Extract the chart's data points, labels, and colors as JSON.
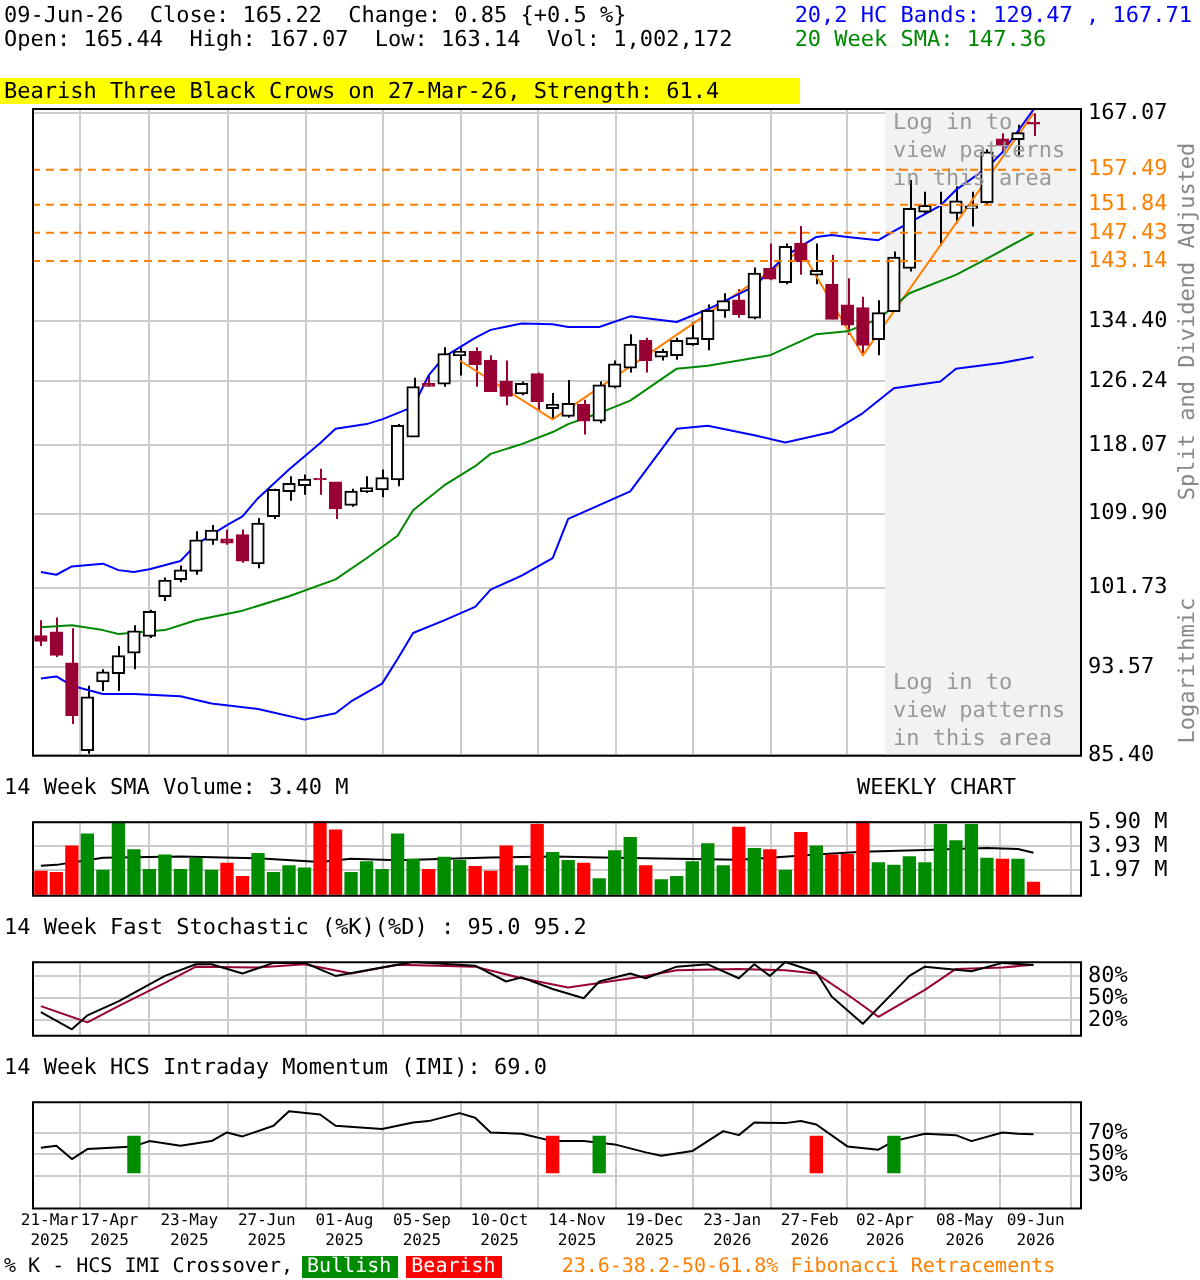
{
  "chart_data": [
    {
      "type": "candlestick",
      "title": "09-Jun-26  Close: 165.22  Change: 0.85 {+0.5 %}",
      "subtitle": "Open: 165.44  High: 167.07  Low: 163.14  Vol: 1,002,172",
      "x": [
        "2025-03-17",
        "2025-03-24",
        "2025-03-31",
        "2025-04-07",
        "2025-04-14",
        "2025-04-21",
        "2025-04-28",
        "2025-05-05",
        "2025-05-12",
        "2025-05-19",
        "2025-05-26",
        "2025-06-02",
        "2025-06-09",
        "2025-06-16",
        "2025-06-23",
        "2025-06-30",
        "2025-07-07",
        "2025-07-14",
        "2025-07-21",
        "2025-07-28",
        "2025-08-04",
        "2025-08-11",
        "2025-08-18",
        "2025-08-25",
        "2025-09-01",
        "2025-09-08",
        "2025-09-15",
        "2025-09-22",
        "2025-09-29",
        "2025-10-06",
        "2025-10-13",
        "2025-10-20",
        "2025-10-27",
        "2025-11-03",
        "2025-11-10",
        "2025-11-17",
        "2025-11-24",
        "2025-12-01",
        "2025-12-08",
        "2025-12-15",
        "2025-12-22",
        "2025-12-29",
        "2026-01-05",
        "2026-01-12",
        "2026-01-19",
        "2026-01-26",
        "2026-02-02",
        "2026-02-09",
        "2026-02-16",
        "2026-02-23",
        "2026-03-02",
        "2026-03-09",
        "2026-03-16",
        "2026-03-23",
        "2026-03-30",
        "2026-04-06",
        "2026-04-13",
        "2026-04-20",
        "2026-04-27",
        "2026-05-04",
        "2026-05-11",
        "2026-05-18",
        "2026-05-25",
        "2026-06-01",
        "2026-06-08"
      ],
      "ohlc": [
        [
          96.7,
          98.3,
          95.7,
          96.2
        ],
        [
          97.1,
          98.6,
          94.6,
          94.8
        ],
        [
          94.0,
          97.5,
          88.2,
          89.0
        ],
        [
          85.8,
          91.8,
          85.5,
          90.7
        ],
        [
          92.2,
          93.4,
          91.3,
          93.1
        ],
        [
          93.0,
          95.7,
          91.3,
          94.7
        ],
        [
          95.0,
          97.8,
          93.4,
          97.2
        ],
        [
          96.7,
          99.4,
          96.5,
          99.2
        ],
        [
          100.8,
          102.8,
          100.3,
          102.5
        ],
        [
          102.6,
          104.1,
          102.3,
          103.6
        ],
        [
          103.5,
          107.9,
          103.1,
          106.9
        ],
        [
          106.9,
          108.6,
          106.4,
          108.0
        ],
        [
          107.0,
          108.1,
          106.4,
          106.6
        ],
        [
          107.5,
          108.1,
          104.4,
          104.6
        ],
        [
          104.3,
          109.4,
          103.8,
          108.8
        ],
        [
          109.6,
          112.8,
          109.3,
          112.7
        ],
        [
          112.5,
          114.3,
          111.4,
          113.4
        ],
        [
          113.2,
          114.5,
          112.1,
          113.9
        ],
        [
          114.0,
          115.2,
          112.1,
          113.9
        ],
        [
          113.6,
          113.6,
          109.3,
          110.5
        ],
        [
          110.9,
          112.8,
          110.7,
          112.5
        ],
        [
          112.5,
          114.3,
          112.3,
          112.9
        ],
        [
          112.7,
          115.1,
          111.8,
          114.1
        ],
        [
          113.9,
          120.7,
          113.1,
          120.5
        ],
        [
          119.1,
          126.7,
          119.1,
          125.5
        ],
        [
          125.9,
          127.0,
          125.5,
          125.6
        ],
        [
          125.9,
          130.8,
          125.5,
          129.9
        ],
        [
          129.7,
          130.8,
          127.0,
          130.2
        ],
        [
          130.2,
          130.8,
          125.5,
          128.5
        ],
        [
          129.0,
          129.7,
          124.9,
          124.9
        ],
        [
          126.2,
          129.0,
          123.1,
          124.3
        ],
        [
          124.6,
          126.2,
          124.4,
          125.9
        ],
        [
          127.2,
          127.4,
          122.4,
          123.6
        ],
        [
          122.7,
          124.7,
          121.3,
          123.2
        ],
        [
          121.7,
          126.4,
          121.5,
          123.3
        ],
        [
          123.2,
          123.8,
          119.4,
          121.1
        ],
        [
          121.1,
          126.2,
          120.8,
          125.7
        ],
        [
          125.5,
          129.0,
          125.3,
          128.5
        ],
        [
          128.0,
          132.6,
          127.4,
          131.2
        ],
        [
          131.7,
          132.1,
          127.4,
          129.0
        ],
        [
          129.5,
          130.6,
          129.0,
          130.2
        ],
        [
          129.7,
          132.1,
          129.1,
          131.7
        ],
        [
          131.2,
          134.3,
          131.0,
          132.1
        ],
        [
          131.9,
          136.8,
          130.4,
          135.9
        ],
        [
          135.9,
          138.4,
          134.9,
          137.3
        ],
        [
          137.4,
          139.0,
          134.9,
          135.4
        ],
        [
          134.9,
          142.2,
          134.7,
          141.3
        ],
        [
          142.0,
          145.8,
          140.3,
          140.5
        ],
        [
          140.0,
          145.8,
          139.7,
          145.3
        ],
        [
          145.8,
          148.5,
          141.1,
          143.1
        ],
        [
          141.1,
          145.8,
          139.7,
          141.7
        ],
        [
          139.7,
          144.1,
          134.7,
          134.7
        ],
        [
          136.7,
          140.6,
          132.5,
          133.9
        ],
        [
          136.3,
          137.9,
          129.7,
          131.1
        ],
        [
          131.9,
          137.4,
          129.7,
          135.6
        ],
        [
          135.8,
          144.6,
          135.8,
          143.7
        ],
        [
          142.1,
          155.8,
          141.6,
          151.2
        ],
        [
          150.7,
          153.9,
          150.4,
          151.7
        ],
        [
          151.7,
          153.9,
          145.5,
          151.8
        ],
        [
          150.5,
          154.8,
          148.9,
          152.4
        ],
        [
          151.3,
          153.9,
          148.4,
          151.6
        ],
        [
          152.2,
          160.9,
          151.9,
          160.4
        ],
        [
          162.6,
          163.6,
          160.4,
          161.6
        ],
        [
          162.6,
          165.1,
          159.9,
          163.7
        ],
        [
          165.44,
          167.07,
          163.14,
          165.22
        ]
      ],
      "colors": [
        "#990033",
        "#990033",
        "#990033",
        "#000000",
        "#000000",
        "#000000",
        "#000000",
        "#000000",
        "#000000",
        "#000000",
        "#000000",
        "#000000",
        "#990033",
        "#990033",
        "#000000",
        "#000000",
        "#000000",
        "#000000",
        "#990033",
        "#990033",
        "#000000",
        "#000000",
        "#000000",
        "#000000",
        "#000000",
        "#990033",
        "#000000",
        "#000000",
        "#990033",
        "#990033",
        "#990033",
        "#000000",
        "#990033",
        "#000000",
        "#000000",
        "#990033",
        "#000000",
        "#000000",
        "#000000",
        "#990033",
        "#000000",
        "#000000",
        "#000000",
        "#000000",
        "#000000",
        "#990033",
        "#000000",
        "#990033",
        "#000000",
        "#990033",
        "#000000",
        "#990033",
        "#990033",
        "#990033",
        "#000000",
        "#000000",
        "#000000",
        "#000000",
        "#000000",
        "#000000",
        "#000000",
        "#000000",
        "#990033",
        "#000000",
        "#990033"
      ],
      "series": [
        {
          "name": "20,2 HC Bands: 129.47 , 167.71",
          "type": "line",
          "color": "#0000ff",
          "x": [
            "2025-03-17",
            "2025-03-24",
            "2025-03-31",
            "2025-04-14",
            "2025-04-21",
            "2025-04-28",
            "2025-05-05",
            "2025-05-19",
            "2025-05-26",
            "2025-06-09",
            "2025-06-16",
            "2025-06-23",
            "2025-07-07",
            "2025-07-21",
            "2025-07-28",
            "2025-08-11",
            "2025-08-18",
            "2025-09-01",
            "2025-09-08",
            "2025-09-15",
            "2025-09-29",
            "2025-10-06",
            "2025-10-20",
            "2025-11-03",
            "2025-11-10",
            "2025-11-24",
            "2025-12-08",
            "2025-12-29",
            "2026-01-12",
            "2026-02-02",
            "2026-02-16",
            "2026-03-02",
            "2026-03-09",
            "2026-03-16",
            "2026-03-30",
            "2026-04-06",
            "2026-04-27",
            "2026-05-04",
            "2026-05-18",
            "2026-05-25",
            "2026-06-08"
          ],
          "values": [
            103.4,
            103.1,
            104.0,
            104.3,
            103.6,
            103.4,
            103.7,
            104.6,
            106.4,
            108.6,
            109.6,
            111.7,
            115.1,
            118.3,
            120.1,
            120.7,
            121.3,
            122.9,
            127.0,
            129.5,
            132.1,
            133.2,
            134.1,
            134.0,
            133.6,
            133.6,
            135.1,
            134.3,
            136.1,
            139.4,
            143.9,
            146.8,
            147.1,
            146.8,
            146.3,
            147.7,
            151.7,
            154.2,
            157.8,
            160.4,
            167.71
          ]
        },
        {
          "type": "line",
          "color": "#0000ff",
          "x": [
            "2025-03-17",
            "2025-03-24",
            "2025-03-31",
            "2025-04-14",
            "2025-04-28",
            "2025-05-19",
            "2025-06-02",
            "2025-06-23",
            "2025-07-14",
            "2025-07-28",
            "2025-08-04",
            "2025-08-18",
            "2025-08-25",
            "2025-09-01",
            "2025-09-15",
            "2025-09-29",
            "2025-10-06",
            "2025-10-20",
            "2025-11-03",
            "2025-11-10",
            "2025-12-08",
            "2025-12-29",
            "2026-01-12",
            "2026-02-02",
            "2026-02-16",
            "2026-03-09",
            "2026-03-23",
            "2026-04-06",
            "2026-04-27",
            "2026-05-04",
            "2026-05-25",
            "2026-06-08"
          ],
          "values": [
            92.5,
            92.7,
            91.8,
            91.0,
            91.0,
            90.8,
            90.1,
            89.6,
            88.6,
            89.2,
            90.3,
            92.0,
            94.4,
            97.0,
            98.3,
            99.7,
            101.5,
            103.0,
            104.9,
            109.3,
            112.5,
            120.1,
            120.5,
            119.3,
            118.4,
            119.7,
            122.1,
            125.3,
            126.2,
            127.9,
            128.7,
            129.47
          ]
        },
        {
          "name": "20 Week SMA: 147.36",
          "type": "line",
          "color": "#008800",
          "x": [
            "2025-03-17",
            "2025-03-31",
            "2025-04-14",
            "2025-04-21",
            "2025-05-12",
            "2025-05-26",
            "2025-06-16",
            "2025-07-07",
            "2025-07-28",
            "2025-08-11",
            "2025-08-25",
            "2025-09-01",
            "2025-09-15",
            "2025-09-29",
            "2025-10-06",
            "2025-10-20",
            "2025-11-03",
            "2025-11-10",
            "2025-11-24",
            "2025-12-08",
            "2025-12-29",
            "2026-01-12",
            "2026-02-09",
            "2026-03-02",
            "2026-03-16",
            "2026-03-30",
            "2026-04-13",
            "2026-05-04",
            "2026-05-18",
            "2026-06-08"
          ],
          "values": [
            97.6,
            97.8,
            97.3,
            96.9,
            97.3,
            98.3,
            99.3,
            100.8,
            102.6,
            104.9,
            107.4,
            110.3,
            113.2,
            115.5,
            117.0,
            118.2,
            119.7,
            120.7,
            122.1,
            123.7,
            127.9,
            128.3,
            129.7,
            132.6,
            133.0,
            134.7,
            138.4,
            141.1,
            143.5,
            147.36
          ]
        },
        {
          "type": "line",
          "color": "#ff8000",
          "x": [
            "2025-09-22",
            "2025-11-03",
            "2026-02-23",
            "2026-03-23",
            "2026-06-08"
          ],
          "values": [
            129.0,
            121.3,
            144.8,
            129.7,
            167.07
          ]
        }
      ],
      "xlim": [
        "2025-03-13",
        "2026-06-29"
      ],
      "xticks": [
        {
          "value": "2025-03-21",
          "label": null
        },
        {
          "value": "2025-04-17",
          "label": null
        },
        {
          "value": "2025-05-23",
          "label": null
        },
        {
          "value": "2025-06-27",
          "label": null
        },
        {
          "value": "2025-08-01",
          "label": null
        },
        {
          "value": "2025-09-05",
          "label": null
        },
        {
          "value": "2025-10-10",
          "label": null
        },
        {
          "value": "2025-11-14",
          "label": null
        },
        {
          "value": "2025-12-19",
          "label": null
        },
        {
          "value": "2026-01-23",
          "label": null
        },
        {
          "value": "2026-02-27",
          "label": null
        },
        {
          "value": "2026-04-02",
          "label": null
        },
        {
          "value": "2026-05-08",
          "label": null
        },
        {
          "value": "2026-06-09",
          "label": null
        }
      ],
      "ylim": [
        85.4,
        168
      ],
      "yticks": [
        {
          "value": 85.4,
          "label": "85.40"
        },
        {
          "value": 93.57,
          "label": "93.57"
        },
        {
          "value": 101.73,
          "label": "101.73"
        },
        {
          "value": 109.9,
          "label": "109.90"
        },
        {
          "value": 118.07,
          "label": "118.07"
        },
        {
          "value": 126.24,
          "label": "126.24"
        },
        {
          "value": 134.4,
          "label": "134.40"
        },
        {
          "value": 167.07,
          "label": "167.07"
        }
      ],
      "log": true,
      "grid": true,
      "tick_labels": "y",
      "legend": "top right",
      "ref_lines": [
        {
          "axis": "y",
          "value": 157.49,
          "label": "157.49",
          "color": "#ff8000",
          "line_style": "dashed"
        },
        {
          "axis": "y",
          "value": 151.84,
          "label": "151.84",
          "color": "#ff8000",
          "line_style": "dashed"
        },
        {
          "axis": "y",
          "value": 147.43,
          "label": "147.43",
          "color": "#ff8000",
          "line_style": "dashed"
        },
        {
          "axis": "y",
          "value": 143.14,
          "label": "143.14",
          "color": "#ff8000",
          "line_style": "dashed"
        }
      ],
      "bands": [
        {
          "axis": "x",
          "from": "2026-04-02",
          "to": "2026-06-29",
          "label": "Log in to view patterns in this area",
          "color": "#f2f2f2"
        }
      ],
      "annotations": [
        "Bearish Three Black Crows on 27-Mar-26, Strength: 61.4",
        "Split and Dividend Adjusted",
        "Logarithmic",
        "Log in to view patterns in this area"
      ]
    },
    {
      "type": "bar",
      "title": "14 Week SMA Volume: 3.40 M",
      "x": [
        "2025-03-17",
        "2025-03-24",
        "2025-03-31",
        "2025-04-07",
        "2025-04-14",
        "2025-04-21",
        "2025-04-28",
        "2025-05-05",
        "2025-05-12",
        "2025-05-19",
        "2025-05-26",
        "2025-06-02",
        "2025-06-09",
        "2025-06-16",
        "2025-06-23",
        "2025-06-30",
        "2025-07-07",
        "2025-07-14",
        "2025-07-21",
        "2025-07-28",
        "2025-08-04",
        "2025-08-11",
        "2025-08-18",
        "2025-08-25",
        "2025-09-01",
        "2025-09-08",
        "2025-09-15",
        "2025-09-22",
        "2025-09-29",
        "2025-10-06",
        "2025-10-13",
        "2025-10-20",
        "2025-10-27",
        "2025-11-03",
        "2025-11-10",
        "2025-11-17",
        "2025-11-24",
        "2025-12-01",
        "2025-12-08",
        "2025-12-15",
        "2025-12-22",
        "2025-12-29",
        "2026-01-05",
        "2026-01-12",
        "2026-01-19",
        "2026-01-26",
        "2026-02-02",
        "2026-02-09",
        "2026-02-16",
        "2026-02-23",
        "2026-03-02",
        "2026-03-09",
        "2026-03-16",
        "2026-03-23",
        "2026-03-30",
        "2026-04-06",
        "2026-04-13",
        "2026-04-20",
        "2026-04-27",
        "2026-05-04",
        "2026-05-11",
        "2026-05-18",
        "2026-05-25",
        "2026-06-01",
        "2026-06-08"
      ],
      "values": [
        1.89,
        1.78,
        3.93,
        4.91,
        1.97,
        5.9,
        3.63,
        2.04,
        3.21,
        2.04,
        2.95,
        1.97,
        2.53,
        1.47,
        3.33,
        1.78,
        2.34,
        2.15,
        5.9,
        5.22,
        1.78,
        2.65,
        2.04,
        4.91,
        2.87,
        2.04,
        3.02,
        2.76,
        2.27,
        1.89,
        3.93,
        2.34,
        5.67,
        3.4,
        2.76,
        2.53,
        1.29,
        3.55,
        4.61,
        2.34,
        1.21,
        1.47,
        2.65,
        4.12,
        2.34,
        5.44,
        3.74,
        3.63,
        1.97,
        5.03,
        3.93,
        3.21,
        3.25,
        5.9,
        2.57,
        2.38,
        3.06,
        2.57,
        5.67,
        4.35,
        5.67,
        2.95,
        2.87,
        2.87,
        1.0
      ],
      "colors": [
        "#ff0000",
        "#ff0000",
        "#ff0000",
        "#008c00",
        "#008c00",
        "#008c00",
        "#008c00",
        "#008c00",
        "#008c00",
        "#008c00",
        "#008c00",
        "#008c00",
        "#ff0000",
        "#ff0000",
        "#008c00",
        "#008c00",
        "#008c00",
        "#008c00",
        "#ff0000",
        "#ff0000",
        "#008c00",
        "#008c00",
        "#008c00",
        "#008c00",
        "#008c00",
        "#ff0000",
        "#008c00",
        "#008c00",
        "#ff0000",
        "#ff0000",
        "#ff0000",
        "#008c00",
        "#ff0000",
        "#008c00",
        "#008c00",
        "#ff0000",
        "#008c00",
        "#008c00",
        "#008c00",
        "#ff0000",
        "#008c00",
        "#008c00",
        "#008c00",
        "#008c00",
        "#008c00",
        "#ff0000",
        "#008c00",
        "#ff0000",
        "#008c00",
        "#ff0000",
        "#008c00",
        "#ff0000",
        "#ff0000",
        "#ff0000",
        "#008c00",
        "#008c00",
        "#008c00",
        "#008c00",
        "#008c00",
        "#008c00",
        "#008c00",
        "#008c00",
        "#ff0000",
        "#008c00",
        "#ff0000"
      ],
      "series": [
        {
          "type": "line",
          "color": "#000000",
          "x": [
            "2025-03-17",
            "2025-03-24",
            "2025-04-14",
            "2025-05-19",
            "2025-06-23",
            "2025-07-21",
            "2025-08-04",
            "2025-08-25",
            "2025-10-06",
            "2025-11-03",
            "2025-12-01",
            "2025-12-29",
            "2026-01-26",
            "2026-02-09",
            "2026-03-02",
            "2026-03-23",
            "2026-04-20",
            "2026-05-18",
            "2026-06-01",
            "2026-06-08"
          ],
          "values": [
            2.34,
            2.42,
            2.99,
            3.1,
            2.95,
            2.65,
            2.91,
            2.8,
            3.02,
            3.1,
            2.99,
            2.91,
            2.84,
            2.99,
            3.25,
            3.48,
            3.63,
            3.78,
            3.7,
            3.4
          ]
        }
      ],
      "xlim": [
        "2025-03-13",
        "2026-06-29"
      ],
      "xticks": [
        {
          "value": "2025-03-21",
          "label": null
        },
        {
          "value": "2025-04-17",
          "label": null
        },
        {
          "value": "2025-05-23",
          "label": null
        },
        {
          "value": "2025-06-27",
          "label": null
        },
        {
          "value": "2025-08-01",
          "label": null
        },
        {
          "value": "2025-09-05",
          "label": null
        },
        {
          "value": "2025-10-10",
          "label": null
        },
        {
          "value": "2025-11-14",
          "label": null
        },
        {
          "value": "2025-12-19",
          "label": null
        },
        {
          "value": "2026-01-23",
          "label": null
        },
        {
          "value": "2026-02-27",
          "label": null
        },
        {
          "value": "2026-04-02",
          "label": null
        },
        {
          "value": "2026-05-08",
          "label": null
        },
        {
          "value": "2026-06-09",
          "label": null
        }
      ],
      "ylim": [
        0,
        5.95
      ],
      "yticks": [
        {
          "value": 1.97,
          "label": "1.97 M"
        },
        {
          "value": 3.93,
          "label": "3.93 M"
        },
        {
          "value": 5.9,
          "label": "5.90 M"
        }
      ],
      "grid": true,
      "tick_labels": "y",
      "annotations": [
        "WEEKLY CHART"
      ]
    },
    {
      "type": "line",
      "title": "14 Week Fast Stochastic (%K)(%D) : 95.0 95.2",
      "series": [
        {
          "color": "#000000",
          "x": [
            "2025-03-17",
            "2025-03-31",
            "2025-04-07",
            "2025-04-21",
            "2025-05-12",
            "2025-05-26",
            "2025-06-02",
            "2025-06-16",
            "2025-06-30",
            "2025-07-14",
            "2025-07-28",
            "2025-08-11",
            "2025-09-01",
            "2025-09-29",
            "2025-10-13",
            "2025-10-20",
            "2025-11-03",
            "2025-11-17",
            "2025-11-24",
            "2025-12-08",
            "2025-12-15",
            "2025-12-29",
            "2026-01-12",
            "2026-01-26",
            "2026-02-02",
            "2026-02-09",
            "2026-02-16",
            "2026-03-02",
            "2026-03-09",
            "2026-03-23",
            "2026-04-13",
            "2026-04-20",
            "2026-05-11",
            "2026-05-25",
            "2026-06-08"
          ],
          "values": [
            30.8,
            7.4,
            26.4,
            45.3,
            80,
            95.8,
            95.8,
            83.2,
            97.7,
            97.7,
            80,
            87.6,
            99,
            93.9,
            72.4,
            78.1,
            62.3,
            49.7,
            72.4,
            83.2,
            76.8,
            92.6,
            95.8,
            76.8,
            95.8,
            80,
            98.9,
            85,
            51.6,
            15,
            80,
            92.6,
            86.3,
            97.7,
            95.0
          ]
        },
        {
          "color": "#990033",
          "x": [
            "2025-03-17",
            "2025-04-07",
            "2025-04-21",
            "2025-05-12",
            "2025-05-26",
            "2025-06-23",
            "2025-07-14",
            "2025-08-04",
            "2025-08-25",
            "2025-09-29",
            "2025-10-20",
            "2025-11-10",
            "2025-11-24",
            "2025-12-15",
            "2025-12-29",
            "2026-01-26",
            "2026-02-16",
            "2026-03-02",
            "2026-03-16",
            "2026-03-30",
            "2026-04-20",
            "2026-05-04",
            "2026-05-25",
            "2026-06-08"
          ],
          "values": [
            39,
            16.9,
            39,
            70.5,
            92.6,
            91.4,
            95.8,
            83.2,
            95.2,
            92.6,
            76.8,
            64.2,
            70.5,
            80,
            87.6,
            89.5,
            87.6,
            83.2,
            54.8,
            24.5,
            61.1,
            89.5,
            91.4,
            95.2
          ]
        }
      ],
      "xlim": [
        "2025-03-13",
        "2026-06-29"
      ],
      "xticks": [
        {
          "value": "2025-03-21",
          "label": null
        },
        {
          "value": "2025-04-17",
          "label": null
        },
        {
          "value": "2025-05-23",
          "label": null
        },
        {
          "value": "2025-06-27",
          "label": null
        },
        {
          "value": "2025-08-01",
          "label": null
        },
        {
          "value": "2025-09-05",
          "label": null
        },
        {
          "value": "2025-10-10",
          "label": null
        },
        {
          "value": "2025-11-14",
          "label": null
        },
        {
          "value": "2025-12-19",
          "label": null
        },
        {
          "value": "2026-01-23",
          "label": null
        },
        {
          "value": "2026-02-27",
          "label": null
        },
        {
          "value": "2026-04-02",
          "label": null
        },
        {
          "value": "2026-05-08",
          "label": null
        },
        {
          "value": "2026-06-09",
          "label": null
        }
      ],
      "ylim": [
        0,
        100
      ],
      "yticks": [
        {
          "value": 20,
          "label": "20%"
        },
        {
          "value": 50,
          "label": "50%"
        },
        {
          "value": 80,
          "label": "80%"
        }
      ],
      "grid": true,
      "tick_labels": "y"
    },
    {
      "type": "line",
      "title": "14 Week HCS Intraday Momentum (IMI): 69.0",
      "series": [
        {
          "color": "#000000",
          "x": [
            "2025-03-17",
            "2025-03-24",
            "2025-03-31",
            "2025-04-07",
            "2025-04-28",
            "2025-05-05",
            "2025-05-19",
            "2025-06-02",
            "2025-06-09",
            "2025-06-16",
            "2025-06-30",
            "2025-07-07",
            "2025-07-21",
            "2025-07-28",
            "2025-08-18",
            "2025-09-01",
            "2025-09-08",
            "2025-09-22",
            "2025-09-29",
            "2025-10-06",
            "2025-10-20",
            "2025-11-03",
            "2025-11-17",
            "2025-12-01",
            "2025-12-15",
            "2025-12-22",
            "2026-01-05",
            "2026-01-19",
            "2026-01-26",
            "2026-02-02",
            "2026-02-16",
            "2026-02-23",
            "2026-03-02",
            "2026-03-16",
            "2026-03-30",
            "2026-04-06",
            "2026-04-20",
            "2026-05-04",
            "2026-05-11",
            "2026-05-25",
            "2026-06-01",
            "2026-06-08"
          ],
          "values": [
            56.3,
            58.1,
            45.6,
            55,
            57.5,
            62.5,
            58.1,
            62.5,
            70.6,
            66.9,
            76.9,
            90.6,
            87.5,
            76.9,
            73.8,
            80,
            81.3,
            88.8,
            84.4,
            70.6,
            69.4,
            62.5,
            62.5,
            59.4,
            51.9,
            48.8,
            53.1,
            71.9,
            68.1,
            80,
            79.4,
            81.3,
            78.1,
            57.5,
            54.4,
            62.5,
            69.4,
            68.1,
            62.5,
            70.6,
            69.4,
            69.0
          ]
        },
        {
          "name": "Bullish",
          "type": "bar",
          "color": "#008c00",
          "x": [
            "2025-04-28",
            "2025-11-24",
            "2026-04-06"
          ],
          "values": [
            34,
            34,
            34
          ],
          "base": [
            33,
            33,
            33
          ]
        },
        {
          "name": "Bearish",
          "type": "bar",
          "color": "#ff0000",
          "x": [
            "2025-11-03",
            "2026-03-02"
          ],
          "values": [
            34,
            34
          ],
          "base": [
            33,
            33
          ]
        }
      ],
      "xlim": [
        "2025-03-13",
        "2026-06-29"
      ],
      "xticks": [
        {
          "value": "2025-03-21",
          "label": "21-Mar 2025"
        },
        {
          "value": "2025-04-17",
          "label": "17-Apr 2025"
        },
        {
          "value": "2025-05-23",
          "label": "23-May 2025"
        },
        {
          "value": "2025-06-27",
          "label": "27-Jun 2025"
        },
        {
          "value": "2025-08-01",
          "label": "01-Aug 2025"
        },
        {
          "value": "2025-09-05",
          "label": "05-Sep 2025"
        },
        {
          "value": "2025-10-10",
          "label": "10-Oct 2025"
        },
        {
          "value": "2025-11-14",
          "label": "14-Nov 2025"
        },
        {
          "value": "2025-12-19",
          "label": "19-Dec 2025"
        },
        {
          "value": "2026-01-23",
          "label": "23-Jan 2026"
        },
        {
          "value": "2026-02-27",
          "label": "27-Feb 2026"
        },
        {
          "value": "2026-04-02",
          "label": "02-Apr 2026"
        },
        {
          "value": "2026-05-08",
          "label": "08-May 2026"
        },
        {
          "value": "2026-06-09",
          "label": "09-Jun 2026"
        }
      ],
      "ylim": [
        0,
        100
      ],
      "yticks": [
        {
          "value": 30,
          "label": "30%"
        },
        {
          "value": 50,
          "label": "50%"
        },
        {
          "value": 70,
          "label": "70%"
        }
      ],
      "grid": true,
      "legend": "bottom",
      "legend_title": "% K - HCS IMI Crossover,",
      "annotations": [
        "23.6-38.2-50-61.8% Fibonacci Retracements"
      ]
    }
  ]
}
